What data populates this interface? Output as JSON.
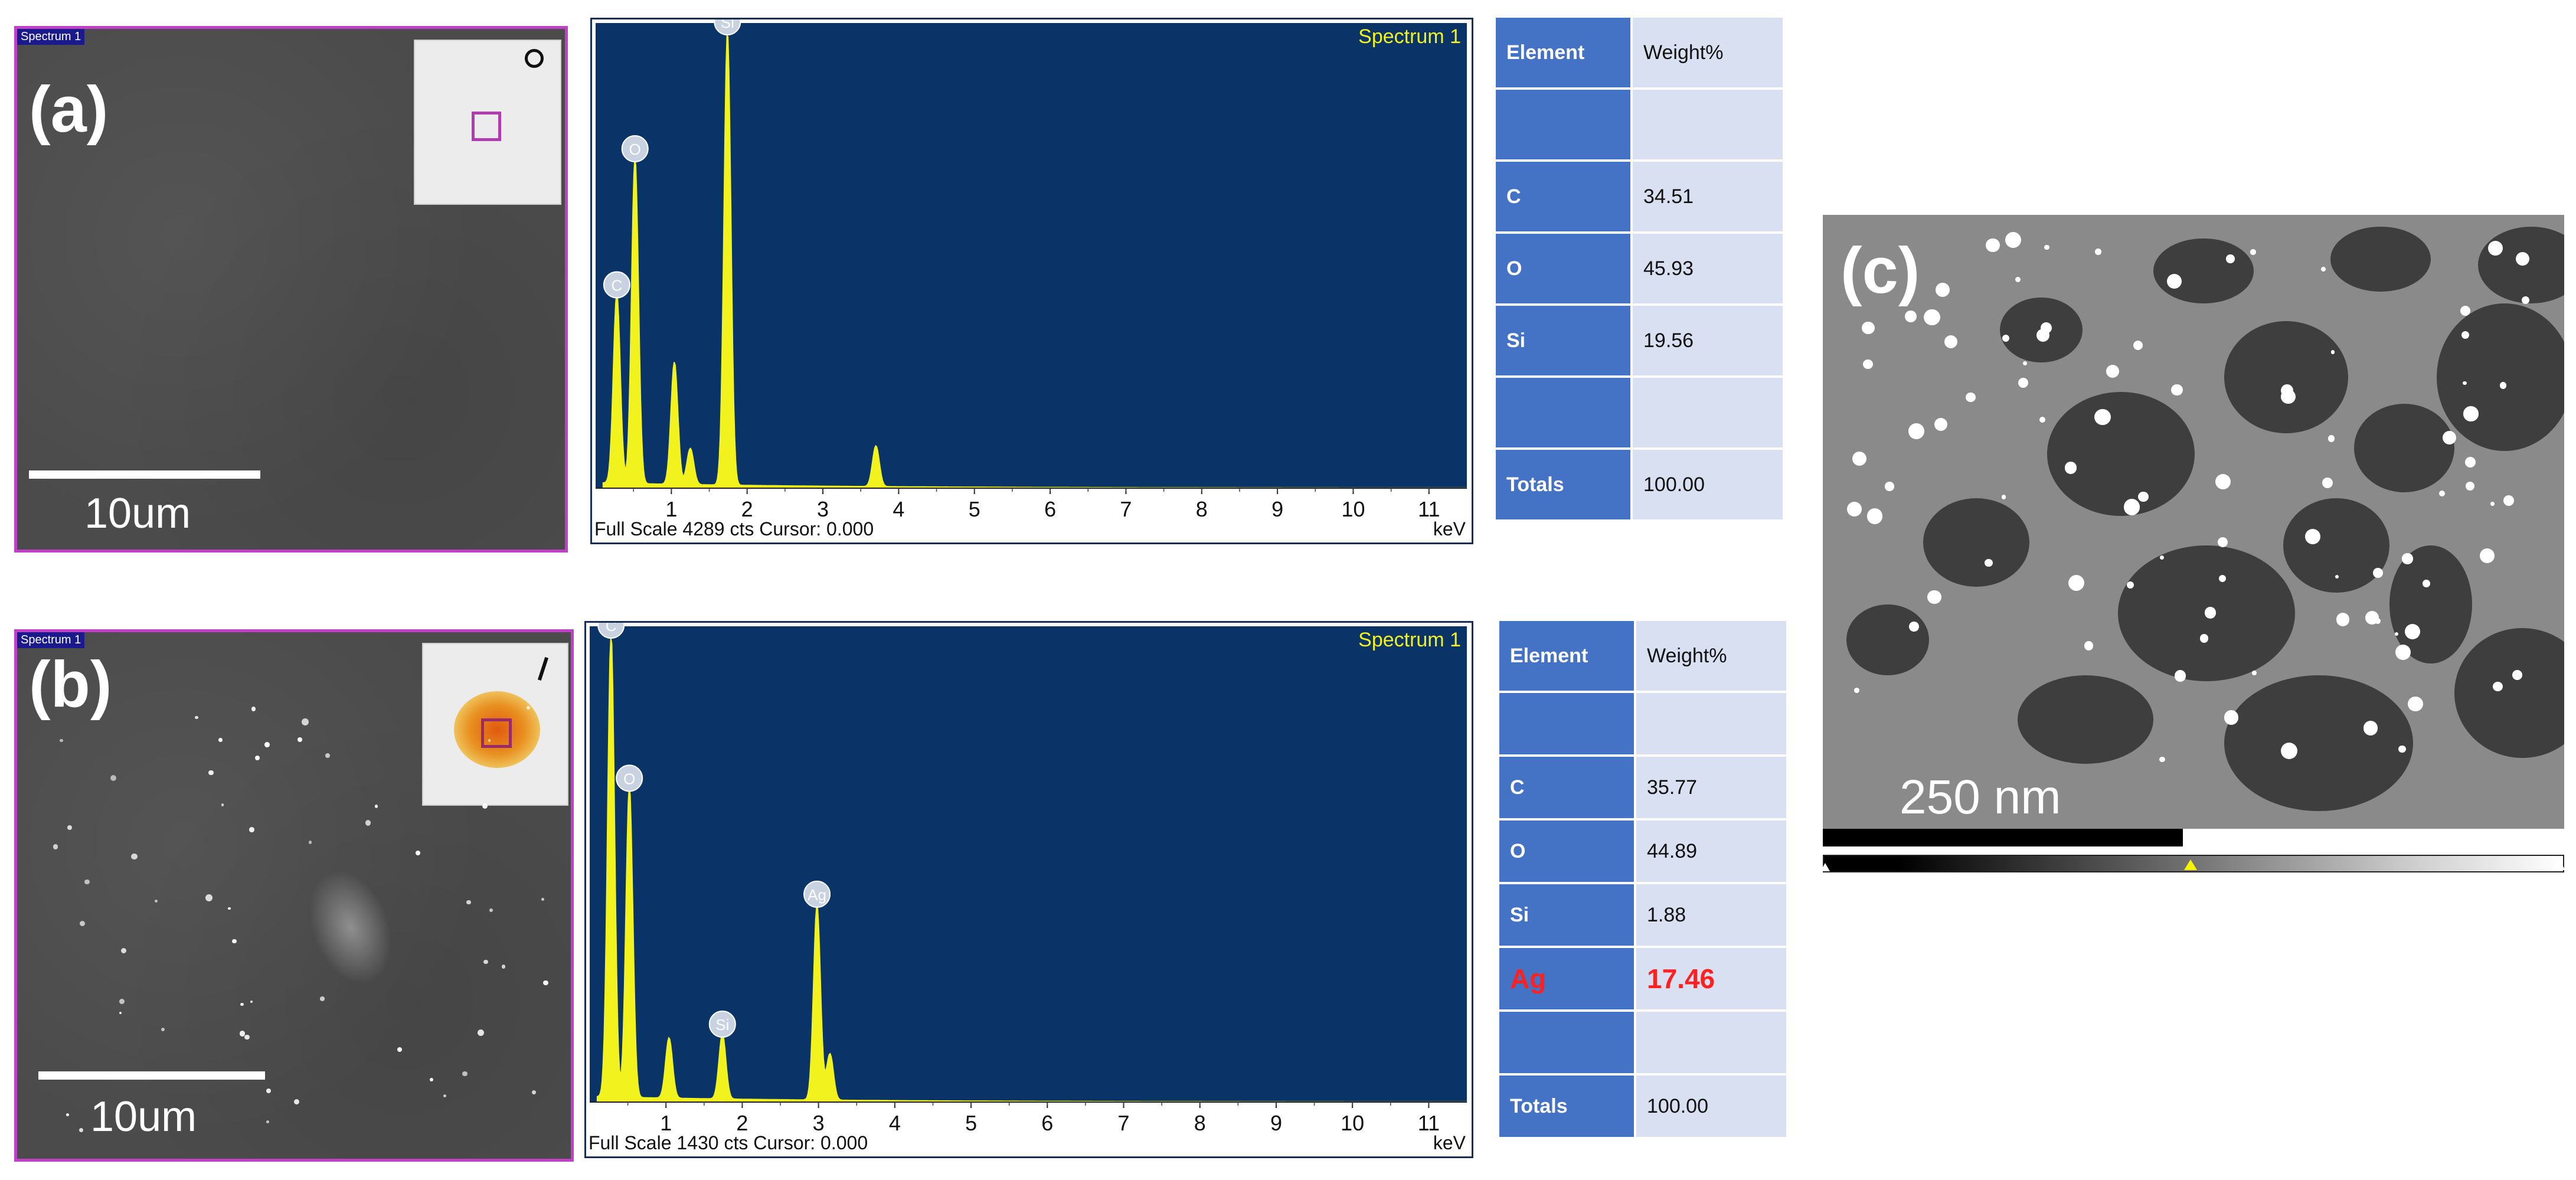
{
  "panels": {
    "a": {
      "letter": "(a)",
      "spectrum_tag": "Spectrum 1",
      "scalebar_label": "10um",
      "eds": {
        "title": "Spectrum 1",
        "footer_left": "Full Scale 4289 cts Cursor: 0.000",
        "footer_right": "keV",
        "peak_labels": [
          "C",
          "O",
          "Si"
        ]
      },
      "table": {
        "header": [
          "Element",
          "Weight%"
        ],
        "rows": [
          {
            "element": "",
            "value": ""
          },
          {
            "element": "C",
            "value": "34.51"
          },
          {
            "element": "O",
            "value": "45.93"
          },
          {
            "element": "Si",
            "value": "19.56"
          },
          {
            "element": "",
            "value": ""
          },
          {
            "element": "Totals",
            "value": "100.00"
          }
        ]
      }
    },
    "b": {
      "letter": "(b)",
      "spectrum_tag": "Spectrum 1",
      "scalebar_label": "10um",
      "eds": {
        "title": "Spectrum 1",
        "footer_left": "Full Scale 1430 cts Cursor: 0.000",
        "footer_right": "keV",
        "peak_labels": [
          "C",
          "O",
          "Si",
          "Ag"
        ]
      },
      "table": {
        "header": [
          "Element",
          "Weight%"
        ],
        "rows": [
          {
            "element": "",
            "value": ""
          },
          {
            "element": "C",
            "value": "35.77"
          },
          {
            "element": "O",
            "value": "44.89"
          },
          {
            "element": "Si",
            "value": "1.88"
          },
          {
            "element": "Ag",
            "value": "17.46"
          },
          {
            "element": "",
            "value": ""
          },
          {
            "element": "Totals",
            "value": "100.00"
          }
        ]
      }
    },
    "c": {
      "letter": "(c)",
      "scalebar_label": "250 nm"
    }
  },
  "chart_data": [
    {
      "type": "line",
      "title": "Spectrum 1",
      "xlabel": "keV",
      "xlim": [
        0,
        11.5
      ],
      "x_ticks": [
        1,
        2,
        3,
        4,
        5,
        6,
        7,
        8,
        9,
        10,
        11
      ],
      "full_scale_cts": 4289,
      "peaks": [
        {
          "label": "C",
          "kev": 0.28,
          "relative_height": 0.42
        },
        {
          "label": "O",
          "kev": 0.52,
          "relative_height": 0.72
        },
        {
          "label": "",
          "kev": 1.04,
          "relative_height": 0.27
        },
        {
          "label": "",
          "kev": 1.25,
          "relative_height": 0.08
        },
        {
          "label": "Si",
          "kev": 1.74,
          "relative_height": 1.0
        },
        {
          "label": "",
          "kev": 3.7,
          "relative_height": 0.09
        }
      ]
    },
    {
      "type": "line",
      "title": "Spectrum 1",
      "xlabel": "keV",
      "xlim": [
        0,
        11.5
      ],
      "x_ticks": [
        1,
        2,
        3,
        4,
        5,
        6,
        7,
        8,
        9,
        10,
        11
      ],
      "full_scale_cts": 1430,
      "peaks": [
        {
          "label": "C",
          "kev": 0.28,
          "relative_height": 1.0
        },
        {
          "label": "O",
          "kev": 0.52,
          "relative_height": 0.67
        },
        {
          "label": "",
          "kev": 1.04,
          "relative_height": 0.13
        },
        {
          "label": "Si",
          "kev": 1.74,
          "relative_height": 0.14
        },
        {
          "label": "Ag",
          "kev": 2.98,
          "relative_height": 0.42
        },
        {
          "label": "",
          "kev": 3.15,
          "relative_height": 0.1
        }
      ]
    }
  ],
  "colors": {
    "spectrum_bg": "#0a3368",
    "spectrum_trace": "#f2f21e",
    "sem_border": "#c040c8",
    "table_header": "#4472c4",
    "table_cell": "#d9e0f1",
    "highlight": "#ff2020"
  }
}
